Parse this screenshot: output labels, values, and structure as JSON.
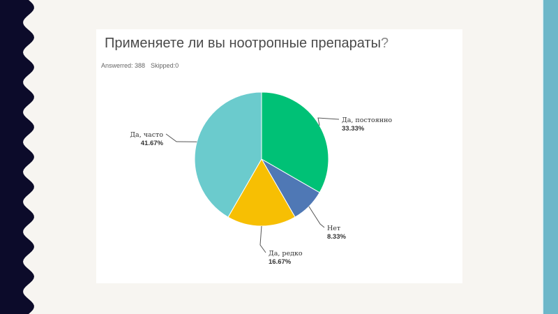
{
  "survey": {
    "question_main": "Применяете ли вы ноотропные препараты",
    "question_mark": "?",
    "answered_label": "Answerred: 388",
    "skipped_label": "Skipped:0"
  },
  "colors": {
    "background": "#f7f5f1",
    "wave_dark": "#0c0b2a",
    "accent_strip": "#6cb7c9"
  },
  "chart_data": {
    "type": "pie",
    "title": "Применяете ли вы ноотропные препараты?",
    "start_angle_deg": 0,
    "direction": "clockwise",
    "slices": [
      {
        "label": "Да, постоянно",
        "value": 33.33,
        "value_label": "33.33%",
        "color": "#00c176"
      },
      {
        "label": "Нет",
        "value": 8.33,
        "value_label": "8.33%",
        "color": "#4f78b5"
      },
      {
        "label": "Да, редко",
        "value": 16.67,
        "value_label": "16.67%",
        "color": "#f7bf03"
      },
      {
        "label": "Да, часто",
        "value": 41.67,
        "value_label": "41.67%",
        "color": "#6bcbcd"
      }
    ]
  }
}
